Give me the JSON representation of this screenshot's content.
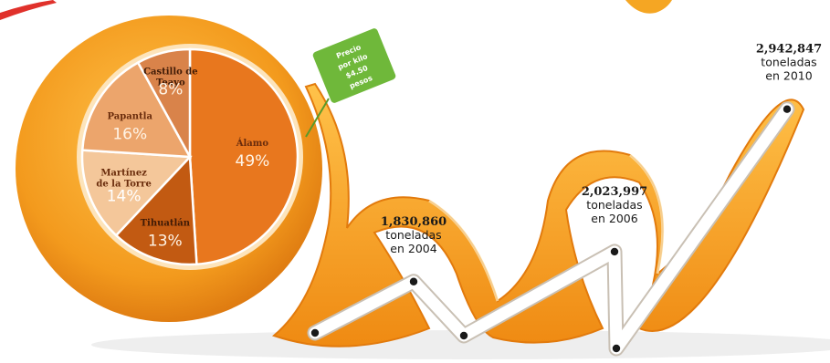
{
  "chart_data": [
    {
      "type": "pie",
      "slices": [
        {
          "label": "Álamo",
          "value": 49,
          "value_label": "49%",
          "color": "#e8771e",
          "label_color": "#6a2c0c",
          "value_color": "#fff4e6"
        },
        {
          "label": "Tihuatlán",
          "value": 13,
          "value_label": "13%",
          "color": "#c25a12",
          "label_color": "#3f1a06",
          "value_color": "#fff4e6"
        },
        {
          "label": "Martínez de la Torre",
          "value": 14,
          "value_label": "14%",
          "color": "#f4c79a",
          "label_color": "#6a2c0c",
          "value_color": "#ffffff"
        },
        {
          "label": "Papantla",
          "value": 16,
          "value_label": "16%",
          "color": "#eca56c",
          "label_color": "#6a2c0c",
          "value_color": "#fff4e6"
        },
        {
          "label": "Castillo de Teayo",
          "value": 8,
          "value_label": "8%",
          "color": "#d9834a",
          "label_color": "#3f1a06",
          "value_color": "#fff4e6"
        }
      ]
    },
    {
      "type": "line",
      "x": [
        "",
        "2004",
        "",
        "2006",
        "",
        "2010"
      ],
      "values": [
        null,
        1830860,
        null,
        2023997,
        null,
        2942847
      ],
      "labels": [
        {
          "number": "1,830,860",
          "unit": "toneladas",
          "year_text": "en 2004"
        },
        {
          "number": "2,023,997",
          "unit": "toneladas",
          "year_text": "en 2006"
        },
        {
          "number": "2,942,847",
          "unit": "toneladas",
          "year_text": "en 2010"
        }
      ]
    }
  ],
  "price_tag": {
    "line1": "Precio",
    "line2": "por kilo",
    "line3": "$4.50",
    "line4": "pesos",
    "color": "#6fb83a"
  },
  "colors": {
    "peel": "#f39a1d",
    "peel_light": "#ffc24a",
    "pith": "#fde4bb",
    "line": "#ffffff",
    "dot": "#1a1a1a"
  }
}
